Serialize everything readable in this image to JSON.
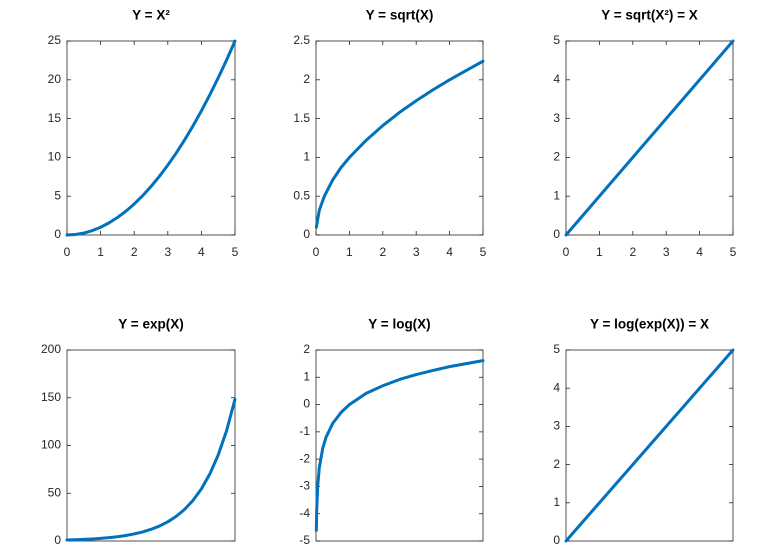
{
  "chart_data": [
    {
      "type": "line",
      "title": "Y = X²",
      "color": "#0072bd",
      "x": [
        0,
        0.25,
        0.5,
        0.75,
        1,
        1.25,
        1.5,
        1.75,
        2,
        2.25,
        2.5,
        2.75,
        3,
        3.25,
        3.5,
        3.75,
        4,
        4.25,
        4.5,
        4.75,
        5
      ],
      "values": [
        0,
        0.06,
        0.25,
        0.56,
        1,
        1.56,
        2.25,
        3.06,
        4,
        5.06,
        6.25,
        7.56,
        9,
        10.56,
        12.25,
        14.06,
        16,
        18.06,
        20.25,
        22.56,
        25
      ],
      "xlim": [
        0,
        5
      ],
      "xticks": [
        0,
        1,
        2,
        3,
        4,
        5
      ],
      "ylim": [
        0,
        25
      ],
      "yticks": [
        0,
        5,
        10,
        15,
        20,
        25
      ]
    },
    {
      "type": "line",
      "title": "Y = sqrt(X)",
      "color": "#0072bd",
      "x": [
        0.01,
        0.1,
        0.25,
        0.5,
        0.75,
        1,
        1.5,
        2,
        2.5,
        3,
        3.5,
        4,
        4.5,
        5
      ],
      "values": [
        0.1,
        0.32,
        0.5,
        0.71,
        0.87,
        1,
        1.22,
        1.41,
        1.58,
        1.73,
        1.87,
        2,
        2.12,
        2.24
      ],
      "xlim": [
        0,
        5
      ],
      "xticks": [
        0,
        1,
        2,
        3,
        4,
        5
      ],
      "ylim": [
        0,
        2.5
      ],
      "yticks": [
        0,
        0.5,
        1,
        1.5,
        2,
        2.5
      ]
    },
    {
      "type": "line",
      "title": "Y = sqrt(X²) = X",
      "color": "#0072bd",
      "x": [
        0,
        5
      ],
      "values": [
        0,
        5
      ],
      "xlim": [
        0,
        5
      ],
      "xticks": [
        0,
        1,
        2,
        3,
        4,
        5
      ],
      "ylim": [
        0,
        5
      ],
      "yticks": [
        0,
        1,
        2,
        3,
        4,
        5
      ]
    },
    {
      "type": "line",
      "title": "Y = exp(X)",
      "color": "#0072bd",
      "x": [
        0,
        0.25,
        0.5,
        0.75,
        1,
        1.25,
        1.5,
        1.75,
        2,
        2.25,
        2.5,
        2.75,
        3,
        3.25,
        3.5,
        3.75,
        4,
        4.25,
        4.5,
        4.75,
        5
      ],
      "values": [
        1,
        1.28,
        1.65,
        2.12,
        2.72,
        3.49,
        4.48,
        5.75,
        7.39,
        9.49,
        12.18,
        15.64,
        20.09,
        25.79,
        33.12,
        42.52,
        54.6,
        70.11,
        90.02,
        115.58,
        148.41
      ],
      "xlim": [
        0,
        5
      ],
      "ylim": [
        0,
        200
      ],
      "yticks": [
        0,
        50,
        100,
        150,
        200
      ]
    },
    {
      "type": "line",
      "title": "Y = log(X)",
      "color": "#0072bd",
      "x": [
        0.01,
        0.02,
        0.05,
        0.1,
        0.2,
        0.3,
        0.5,
        0.75,
        1,
        1.5,
        2,
        2.5,
        3,
        3.5,
        4,
        4.5,
        5
      ],
      "values": [
        -4.61,
        -3.91,
        -3.0,
        -2.3,
        -1.61,
        -1.2,
        -0.69,
        -0.29,
        0,
        0.41,
        0.69,
        0.92,
        1.1,
        1.25,
        1.39,
        1.5,
        1.61
      ],
      "xlim": [
        0,
        5
      ],
      "ylim": [
        -5,
        2
      ],
      "yticks": [
        -5,
        -4,
        -3,
        -2,
        -1,
        0,
        1,
        2
      ]
    },
    {
      "type": "line",
      "title": "Y = log(exp(X)) = X",
      "color": "#0072bd",
      "x": [
        0,
        5
      ],
      "values": [
        0,
        5
      ],
      "xlim": [
        0,
        5
      ],
      "ylim": [
        0,
        5
      ],
      "yticks": [
        0,
        1,
        2,
        3,
        4,
        5
      ]
    }
  ]
}
